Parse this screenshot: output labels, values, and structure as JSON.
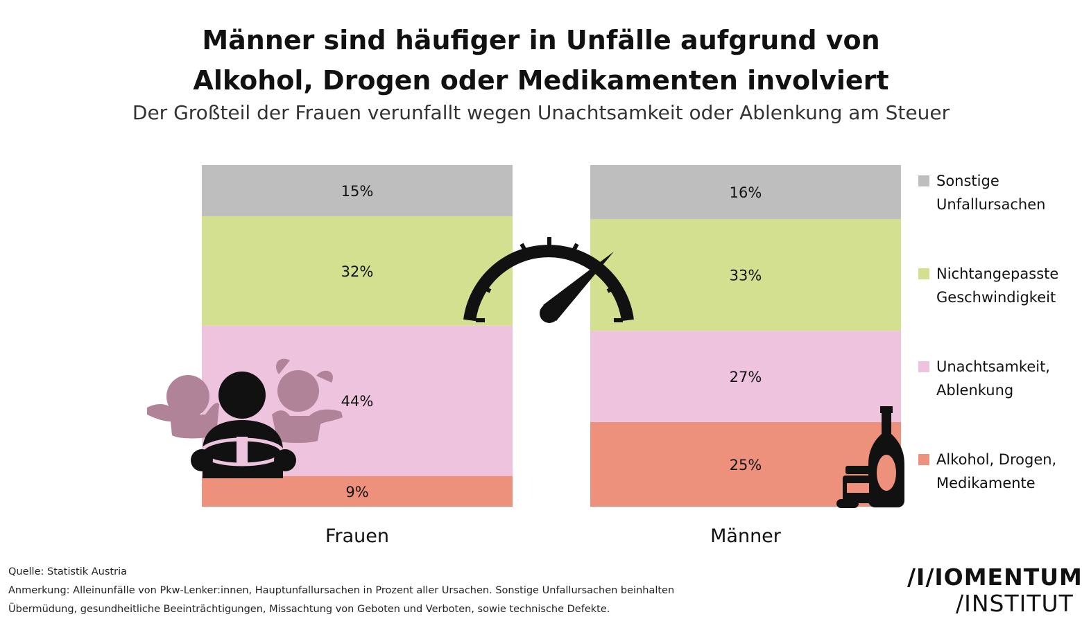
{
  "title_line1": "Männer sind häufiger in Unfälle aufgrund von",
  "title_line2": "Alkohol, Drogen oder Medikamenten involviert",
  "subtitle": "Der Großteil der Frauen verunfallt wegen Unachtsamkeit oder Ablenkung am Steuer",
  "chart_data": {
    "type": "bar",
    "stacked": true,
    "normalized": true,
    "categories": [
      "Frauen",
      "Männer"
    ],
    "series": [
      {
        "name": "Alkohol, Drogen, Medikamente",
        "values": [
          9,
          25
        ],
        "labels": [
          "9%",
          "25%"
        ],
        "color": "#ED917D"
      },
      {
        "name": "Unachtsamkeit, Ablenkung",
        "values": [
          44,
          27
        ],
        "labels": [
          "44%",
          "27%"
        ],
        "color": "#EEC3DE"
      },
      {
        "name": "Nichtangepasste Geschwindigkeit",
        "values": [
          32,
          33
        ],
        "labels": [
          "32%",
          "33%"
        ],
        "color": "#D3E08F"
      },
      {
        "name": "Sonstige Unfallursachen",
        "values": [
          15,
          16
        ],
        "labels": [
          "15%",
          "16%"
        ],
        "color": "#BEBEBE"
      }
    ],
    "legend_position": "right",
    "grid": false
  },
  "legend": [
    {
      "line1": "Sonstige",
      "line2": "Unfallursachen",
      "color": "#BEBEBE"
    },
    {
      "line1": "Nichtangepasste",
      "line2": "Geschwindigkeit",
      "color": "#D3E08F"
    },
    {
      "line1": "Unachtsamkeit,",
      "line2": "Ablenkung",
      "color": "#EEC3DE"
    },
    {
      "line1": "Alkohol, Drogen,",
      "line2": "Medikamente",
      "color": "#ED917D"
    }
  ],
  "icons": [
    "family-driver-icon",
    "speedometer-icon",
    "bottle-pills-icon"
  ],
  "footer": {
    "source": "Quelle: Statistik Austria",
    "note_line1": "Anmerkung: Alleinunfälle von Pkw-Lenker:innen, Hauptunfallursachen in Prozent aller Ursachen. Sonstige Unfallursachen beinhalten",
    "note_line2": "Übermüdung, gesundheitliche Beeinträchtigungen, Missachtung von Geboten und Verboten, sowie technische Defekte."
  },
  "logo": {
    "line1": "/I/IOMENTUM",
    "line2": "/INSTITUT"
  }
}
